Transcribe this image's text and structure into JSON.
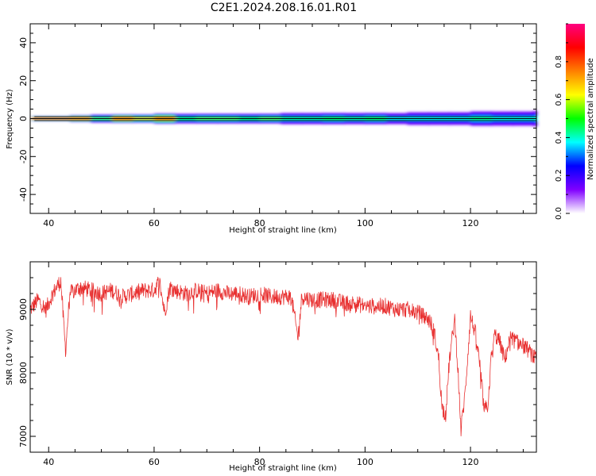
{
  "title": "C2E1.2024.208.16.01.R01",
  "chart_data": [
    {
      "type": "heatmap",
      "title": "",
      "xlabel": "Height of straight line (km)",
      "ylabel": "Frequency (Hz)",
      "xlim": [
        36.5,
        132.5
      ],
      "ylim": [
        -50,
        50
      ],
      "xticks": [
        40,
        60,
        80,
        100,
        120
      ],
      "yticks": [
        40,
        20,
        0,
        -20,
        -40
      ],
      "colorbar": {
        "label": "Normalized spectral amplitude",
        "range": [
          0,
          1
        ],
        "ticks": [
          "0.0",
          "0.2",
          "0.4",
          "0.6",
          "0.8"
        ],
        "colors": [
          "#ffffff",
          "#8000ff",
          "#0000ff",
          "#00ffff",
          "#00ff00",
          "#ffff00",
          "#ff8000",
          "#ff0000",
          "#ff0080"
        ]
      },
      "band": {
        "x": [
          37,
          40,
          44,
          48,
          52,
          56,
          60,
          64,
          68,
          72,
          76,
          80,
          84,
          88,
          92,
          96,
          100,
          104,
          108,
          112,
          116,
          120,
          124,
          128,
          132
        ],
        "amplitude_at_0Hz": [
          0.95,
          0.95,
          0.9,
          0.55,
          0.9,
          0.7,
          0.85,
          0.5,
          0.55,
          0.55,
          0.5,
          0.55,
          0.45,
          0.45,
          0.5,
          0.45,
          0.5,
          0.4,
          0.4,
          0.4,
          0.4,
          0.45,
          0.4,
          0.4,
          0.4
        ],
        "half_width_hz": [
          1.5,
          1.5,
          2,
          2.5,
          2.5,
          2.5,
          3,
          3,
          3,
          3,
          3,
          3,
          3.5,
          3.5,
          3.5,
          3.5,
          3.5,
          3.5,
          4,
          4,
          4,
          4.5,
          4.5,
          4.5,
          5
        ]
      }
    },
    {
      "type": "line",
      "title": "",
      "xlabel": "Height of straight line (km)",
      "ylabel": "SNR (10 * v/v)",
      "xlim": [
        36.5,
        132.5
      ],
      "ylim": [
        6750,
        9750
      ],
      "xticks": [
        40,
        60,
        80,
        100,
        120
      ],
      "yticks": [
        9000,
        8000,
        7000
      ],
      "color": "#e83030",
      "series": [
        {
          "x": [
            36.5,
            38,
            39.5,
            40.5,
            41.5,
            42.3,
            43.2,
            44,
            46,
            48,
            50,
            52,
            54,
            56,
            58,
            60,
            61,
            62,
            63,
            64,
            66,
            68,
            70,
            72,
            74,
            76,
            78,
            80,
            82,
            84,
            86,
            87.3,
            88,
            90,
            92,
            94,
            96,
            98,
            100,
            102,
            104,
            106,
            108,
            110,
            111,
            112,
            113,
            114,
            114.6,
            115.3,
            116,
            117,
            117.6,
            118.2,
            119,
            120,
            121,
            121.8,
            122.6,
            123.3,
            124,
            124.6,
            125.5,
            126.5,
            127.5,
            128.5,
            129.5,
            130.5,
            131.5,
            132.5
          ],
          "values": [
            9000,
            9150,
            9000,
            9200,
            9350,
            9450,
            8350,
            9250,
            9350,
            9300,
            9250,
            9300,
            9200,
            9250,
            9300,
            9300,
            9450,
            8950,
            9350,
            9300,
            9250,
            9300,
            9250,
            9300,
            9250,
            9250,
            9200,
            9250,
            9200,
            9200,
            9200,
            8550,
            9200,
            9150,
            9150,
            9150,
            9100,
            9100,
            9050,
            9050,
            9050,
            9000,
            9000,
            8950,
            8900,
            8850,
            8700,
            8200,
            7450,
            7350,
            8200,
            8850,
            8100,
            7100,
            7700,
            8900,
            8600,
            8100,
            7400,
            7500,
            8300,
            8600,
            8500,
            8200,
            8550,
            8500,
            8450,
            8400,
            8300,
            8200
          ]
        }
      ]
    }
  ]
}
